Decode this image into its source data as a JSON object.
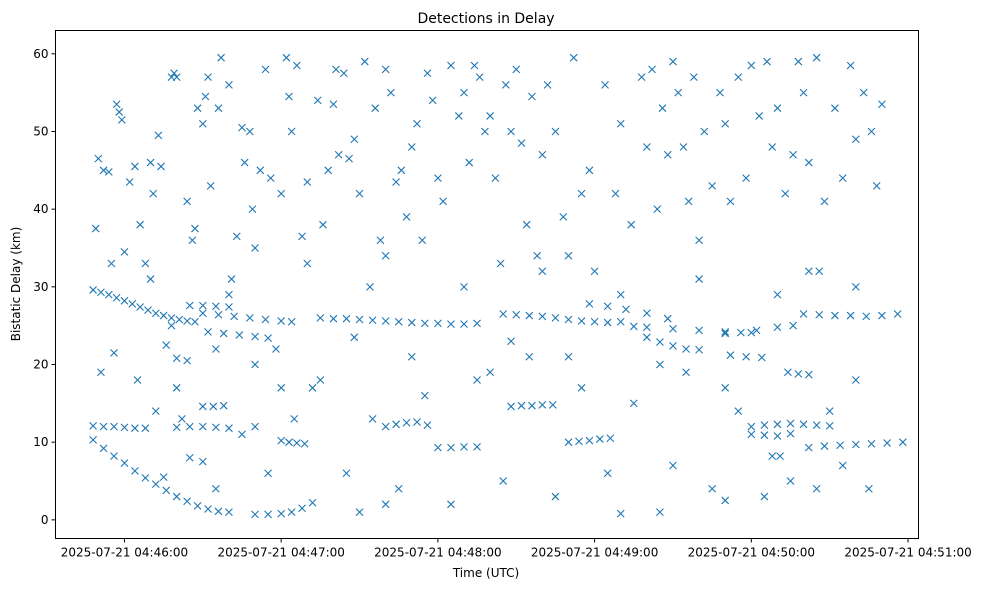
{
  "chart_data": {
    "type": "scatter",
    "title": "Detections in Delay",
    "xlabel": "Time (UTC)",
    "ylabel": "Bistatic Delay (km)",
    "x_units": "seconds after 2025-07-21 04:46:00 UTC",
    "xlim": [
      -26.4,
      304
    ],
    "ylim": [
      -2.4,
      63
    ],
    "grid": false,
    "marker": "x",
    "color": "#1f77b4",
    "xticks": [
      {
        "value": 0,
        "label": "2025-07-21 04:46:00"
      },
      {
        "value": 60,
        "label": "2025-07-21 04:47:00"
      },
      {
        "value": 120,
        "label": "2025-07-21 04:48:00"
      },
      {
        "value": 180,
        "label": "2025-07-21 04:49:00"
      },
      {
        "value": 240,
        "label": "2025-07-21 04:50:00"
      },
      {
        "value": 300,
        "label": "2025-07-21 04:51:00"
      }
    ],
    "yticks": [
      {
        "value": 0,
        "label": "0"
      },
      {
        "value": 10,
        "label": "10"
      },
      {
        "value": 20,
        "label": "20"
      },
      {
        "value": 30,
        "label": "30"
      },
      {
        "value": 40,
        "label": "40"
      },
      {
        "value": 50,
        "label": "50"
      },
      {
        "value": 60,
        "label": "60"
      }
    ],
    "points": [
      [
        -12,
        29.6
      ],
      [
        -9,
        29.3
      ],
      [
        -6,
        29
      ],
      [
        -3,
        28.6
      ],
      [
        0,
        28.2
      ],
      [
        3,
        27.8
      ],
      [
        6,
        27.4
      ],
      [
        9,
        27.0
      ],
      [
        12,
        26.6
      ],
      [
        15,
        26.3
      ],
      [
        18,
        26.0
      ],
      [
        21,
        25.8
      ],
      [
        24,
        25.6
      ],
      [
        27,
        25.5
      ],
      [
        -12,
        12.1
      ],
      [
        -8,
        12.0
      ],
      [
        -4,
        12.0
      ],
      [
        0,
        11.9
      ],
      [
        4,
        11.8
      ],
      [
        8,
        11.8
      ],
      [
        20,
        11.9
      ],
      [
        25,
        12
      ],
      [
        30,
        12
      ],
      [
        35,
        11.9
      ],
      [
        40,
        11.8
      ],
      [
        -12,
        10.3
      ],
      [
        -8,
        9.2
      ],
      [
        -4,
        8.2
      ],
      [
        0,
        7.3
      ],
      [
        4,
        6.3
      ],
      [
        8,
        5.4
      ],
      [
        12,
        4.6
      ],
      [
        16,
        3.8
      ],
      [
        20,
        3.0
      ],
      [
        24,
        2.4
      ],
      [
        28,
        1.8
      ],
      [
        32,
        1.4
      ],
      [
        36,
        1.1
      ],
      [
        40,
        1.0
      ],
      [
        50,
        0.7
      ],
      [
        55,
        0.7
      ],
      [
        60,
        0.8
      ],
      [
        64,
        1.0
      ],
      [
        68,
        1.5
      ],
      [
        72,
        2.2
      ],
      [
        25,
        27.6
      ],
      [
        30,
        27.6
      ],
      [
        35,
        27.5
      ],
      [
        40,
        27.4
      ],
      [
        30,
        26.6
      ],
      [
        36,
        26.4
      ],
      [
        42,
        26.2
      ],
      [
        48,
        26
      ],
      [
        54,
        25.8
      ],
      [
        60,
        25.6
      ],
      [
        64,
        25.5
      ],
      [
        32,
        24.2
      ],
      [
        38,
        24
      ],
      [
        44,
        23.8
      ],
      [
        50,
        23.6
      ],
      [
        55,
        23.4
      ],
      [
        60,
        10.2
      ],
      [
        63,
        10
      ],
      [
        66,
        9.9
      ],
      [
        69,
        9.8
      ],
      [
        75,
        26.0
      ],
      [
        80,
        25.9
      ],
      [
        85,
        25.9
      ],
      [
        90,
        25.8
      ],
      [
        95,
        25.7
      ],
      [
        100,
        25.6
      ],
      [
        105,
        25.5
      ],
      [
        110,
        25.4
      ],
      [
        115,
        25.3
      ],
      [
        120,
        25.3
      ],
      [
        125,
        25.2
      ],
      [
        130,
        25.2
      ],
      [
        135,
        25.3
      ],
      [
        145,
        26.5
      ],
      [
        150,
        26.4
      ],
      [
        155,
        26.3
      ],
      [
        160,
        26.2
      ],
      [
        165,
        26
      ],
      [
        170,
        25.8
      ],
      [
        175,
        25.6
      ],
      [
        180,
        25.5
      ],
      [
        185,
        25.4
      ],
      [
        190,
        25.5
      ],
      [
        195,
        24.9
      ],
      [
        200,
        24.8
      ],
      [
        210,
        24.6
      ],
      [
        220,
        24.4
      ],
      [
        230,
        24.2
      ],
      [
        240,
        24.1
      ],
      [
        178,
        27.8
      ],
      [
        185,
        27.5
      ],
      [
        192,
        27.1
      ],
      [
        200,
        26.6
      ],
      [
        208,
        25.9
      ],
      [
        200,
        23.5
      ],
      [
        205,
        22.9
      ],
      [
        210,
        22.4
      ],
      [
        215,
        22
      ],
      [
        220,
        21.9
      ],
      [
        148,
        14.6
      ],
      [
        152,
        14.7
      ],
      [
        156,
        14.7
      ],
      [
        160,
        14.8
      ],
      [
        164,
        14.8
      ],
      [
        170,
        10
      ],
      [
        174,
        10.1
      ],
      [
        178,
        10.2
      ],
      [
        182,
        10.4
      ],
      [
        186,
        10.5
      ],
      [
        100,
        12
      ],
      [
        104,
        12.3
      ],
      [
        108,
        12.5
      ],
      [
        112,
        12.6
      ],
      [
        116,
        12.2
      ],
      [
        120,
        9.3
      ],
      [
        125,
        9.3
      ],
      [
        130,
        9.4
      ],
      [
        135,
        9.4
      ],
      [
        240,
        11
      ],
      [
        245,
        10.9
      ],
      [
        250,
        10.8
      ],
      [
        255,
        11.1
      ],
      [
        248,
        8.2
      ],
      [
        251,
        8.2
      ],
      [
        240,
        12
      ],
      [
        245,
        12.2
      ],
      [
        250,
        12.3
      ],
      [
        255,
        12.4
      ],
      [
        260,
        12.3
      ],
      [
        265,
        12.2
      ],
      [
        270,
        12.1
      ],
      [
        262,
        9.3
      ],
      [
        268,
        9.5
      ],
      [
        274,
        9.6
      ],
      [
        280,
        9.7
      ],
      [
        286,
        9.8
      ],
      [
        292,
        9.9
      ],
      [
        298,
        10
      ],
      [
        260,
        26.5
      ],
      [
        266,
        26.4
      ],
      [
        272,
        26.3
      ],
      [
        278,
        26.3
      ],
      [
        284,
        26.2
      ],
      [
        290,
        26.3
      ],
      [
        296,
        26.5
      ],
      [
        230,
        24
      ],
      [
        236,
        24.1
      ],
      [
        242,
        24.4
      ],
      [
        250,
        24.8
      ],
      [
        256,
        25
      ],
      [
        254,
        19
      ],
      [
        258,
        18.8
      ],
      [
        262,
        18.7
      ],
      [
        262,
        32
      ],
      [
        266,
        32
      ],
      [
        232,
        21.2
      ],
      [
        238,
        21
      ],
      [
        244,
        20.9
      ],
      [
        20,
        20.8
      ],
      [
        24,
        20.5
      ],
      [
        30,
        14.6
      ],
      [
        34,
        14.6
      ],
      [
        38,
        14.7
      ],
      [
        -10,
        46.5
      ],
      [
        -8,
        45
      ],
      [
        -6,
        44.8
      ],
      [
        -11,
        37.5
      ],
      [
        -9,
        19
      ],
      [
        -5,
        33
      ],
      [
        -3,
        53.5
      ],
      [
        -2,
        52.5
      ],
      [
        -1,
        51.5
      ],
      [
        -4,
        21.5
      ],
      [
        0,
        34.5
      ],
      [
        2,
        43.5
      ],
      [
        4,
        45.5
      ],
      [
        6,
        38
      ],
      [
        8,
        33
      ],
      [
        10,
        46
      ],
      [
        11,
        42
      ],
      [
        13,
        49.5
      ],
      [
        14,
        45.5
      ],
      [
        16,
        22.5
      ],
      [
        12,
        14
      ],
      [
        15,
        5.5
      ],
      [
        18,
        57
      ],
      [
        19,
        57.5
      ],
      [
        20,
        57
      ],
      [
        22,
        13
      ],
      [
        24,
        41
      ],
      [
        26,
        36
      ],
      [
        27,
        37.5
      ],
      [
        28,
        53
      ],
      [
        30,
        51
      ],
      [
        31,
        54.5
      ],
      [
        32,
        57
      ],
      [
        33,
        43
      ],
      [
        35,
        22
      ],
      [
        36,
        53
      ],
      [
        37,
        59.5
      ],
      [
        40,
        56
      ],
      [
        41,
        31
      ],
      [
        43,
        36.5
      ],
      [
        45,
        50.5
      ],
      [
        46,
        46
      ],
      [
        48,
        50
      ],
      [
        49,
        40
      ],
      [
        50,
        35
      ],
      [
        52,
        45
      ],
      [
        54,
        58
      ],
      [
        56,
        44
      ],
      [
        58,
        22
      ],
      [
        60,
        42
      ],
      [
        62,
        59.5
      ],
      [
        63,
        54.5
      ],
      [
        64,
        50
      ],
      [
        66,
        58.5
      ],
      [
        68,
        36.5
      ],
      [
        70,
        43.5
      ],
      [
        72,
        17
      ],
      [
        74,
        54
      ],
      [
        76,
        38
      ],
      [
        78,
        45
      ],
      [
        80,
        53.5
      ],
      [
        81,
        58
      ],
      [
        82,
        47
      ],
      [
        84,
        57.5
      ],
      [
        86,
        46.5
      ],
      [
        88,
        49
      ],
      [
        90,
        42
      ],
      [
        92,
        59
      ],
      [
        94,
        30
      ],
      [
        96,
        53
      ],
      [
        98,
        36
      ],
      [
        100,
        58
      ],
      [
        102,
        55
      ],
      [
        104,
        43.5
      ],
      [
        106,
        45
      ],
      [
        108,
        39
      ],
      [
        110,
        48
      ],
      [
        112,
        51
      ],
      [
        114,
        36
      ],
      [
        116,
        57.5
      ],
      [
        118,
        54
      ],
      [
        120,
        44
      ],
      [
        122,
        41
      ],
      [
        125,
        58.5
      ],
      [
        128,
        52
      ],
      [
        130,
        55
      ],
      [
        132,
        46
      ],
      [
        134,
        58.5
      ],
      [
        136,
        57
      ],
      [
        138,
        50
      ],
      [
        140,
        52
      ],
      [
        142,
        44
      ],
      [
        144,
        33
      ],
      [
        146,
        56
      ],
      [
        148,
        50
      ],
      [
        150,
        58
      ],
      [
        152,
        48.5
      ],
      [
        154,
        38
      ],
      [
        156,
        54.5
      ],
      [
        158,
        34
      ],
      [
        160,
        47
      ],
      [
        162,
        56
      ],
      [
        165,
        50
      ],
      [
        168,
        39
      ],
      [
        170,
        34
      ],
      [
        172,
        59.5
      ],
      [
        175,
        42
      ],
      [
        178,
        45
      ],
      [
        180,
        32
      ],
      [
        184,
        56
      ],
      [
        188,
        42
      ],
      [
        190,
        51
      ],
      [
        194,
        38
      ],
      [
        198,
        57
      ],
      [
        200,
        48
      ],
      [
        202,
        58
      ],
      [
        204,
        40
      ],
      [
        206,
        53
      ],
      [
        208,
        47
      ],
      [
        210,
        59
      ],
      [
        212,
        55
      ],
      [
        214,
        48
      ],
      [
        216,
        41
      ],
      [
        218,
        57
      ],
      [
        220,
        36
      ],
      [
        222,
        50
      ],
      [
        225,
        43
      ],
      [
        228,
        55
      ],
      [
        230,
        51
      ],
      [
        232,
        41
      ],
      [
        235,
        57
      ],
      [
        238,
        44
      ],
      [
        240,
        58.5
      ],
      [
        243,
        52
      ],
      [
        246,
        59
      ],
      [
        248,
        48
      ],
      [
        250,
        53
      ],
      [
        253,
        42
      ],
      [
        256,
        47
      ],
      [
        258,
        59
      ],
      [
        260,
        55
      ],
      [
        262,
        46
      ],
      [
        265,
        59.5
      ],
      [
        268,
        41
      ],
      [
        272,
        53
      ],
      [
        275,
        44
      ],
      [
        278,
        58.5
      ],
      [
        280,
        49
      ],
      [
        283,
        55
      ],
      [
        286,
        50
      ],
      [
        288,
        43
      ],
      [
        290,
        53.5
      ],
      [
        5,
        18
      ],
      [
        20,
        17
      ],
      [
        25,
        8
      ],
      [
        35,
        4
      ],
      [
        45,
        11
      ],
      [
        55,
        6
      ],
      [
        65,
        13
      ],
      [
        75,
        18
      ],
      [
        85,
        6
      ],
      [
        95,
        13
      ],
      [
        105,
        4
      ],
      [
        115,
        16
      ],
      [
        125,
        2
      ],
      [
        135,
        18
      ],
      [
        145,
        5
      ],
      [
        155,
        21
      ],
      [
        165,
        3
      ],
      [
        175,
        17
      ],
      [
        185,
        6
      ],
      [
        195,
        15
      ],
      [
        205,
        1
      ],
      [
        215,
        19
      ],
      [
        225,
        4
      ],
      [
        235,
        14
      ],
      [
        245,
        3
      ],
      [
        255,
        5
      ],
      [
        265,
        4
      ],
      [
        275,
        7
      ],
      [
        285,
        4
      ],
      [
        90,
        1
      ],
      [
        190,
        0.8
      ],
      [
        140,
        19
      ],
      [
        60,
        17
      ],
      [
        30,
        7.5
      ],
      [
        50,
        12
      ],
      [
        100,
        2
      ],
      [
        210,
        7
      ],
      [
        230,
        2.5
      ],
      [
        270,
        14
      ],
      [
        280,
        18
      ],
      [
        10,
        31
      ],
      [
        40,
        29
      ],
      [
        70,
        33
      ],
      [
        100,
        34
      ],
      [
        130,
        30
      ],
      [
        160,
        32
      ],
      [
        190,
        29
      ],
      [
        220,
        31
      ],
      [
        250,
        29
      ],
      [
        280,
        30
      ],
      [
        50,
        20
      ],
      [
        110,
        21
      ],
      [
        170,
        21
      ],
      [
        230,
        17
      ],
      [
        18,
        25
      ],
      [
        88,
        23.5
      ],
      [
        148,
        23
      ],
      [
        205,
        20
      ]
    ]
  }
}
